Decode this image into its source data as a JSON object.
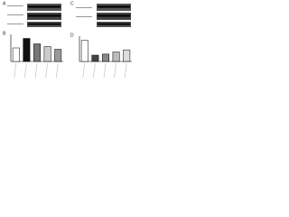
{
  "panels": [
    "A",
    "B",
    "C",
    "D"
  ],
  "chart_data": [
    {
      "type": "bar",
      "values": [
        0.5,
        0.85,
        0.65,
        0.55,
        0.45
      ],
      "colors": [
        "#ffffff",
        "#111111",
        "#777777",
        "#cccccc",
        "#999999"
      ],
      "ylim": [
        0,
        1
      ]
    },
    {
      "type": "bar",
      "values": [
        1.0,
        0.3,
        0.35,
        0.45,
        0.55
      ],
      "colors": [
        "#ffffff",
        "#444444",
        "#888888",
        "#bbbbbb",
        "#dddddd"
      ],
      "ylim": [
        0,
        1.2
      ]
    }
  ]
}
